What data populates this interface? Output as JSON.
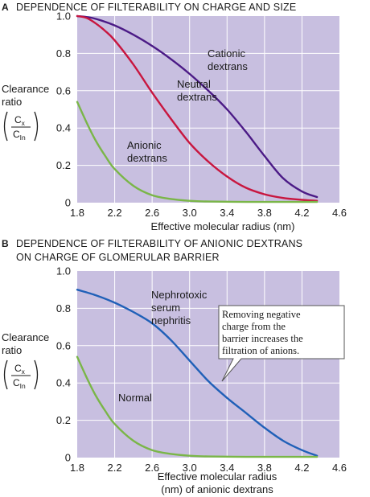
{
  "chart_data": [
    {
      "type": "line",
      "panel_letter": "A",
      "title": "DEPENDENCE OF FILTERABILITY ON CHARGE AND SIZE",
      "xlabel": "Effective molecular radius (nm)",
      "ylabel": "Clearance ratio",
      "ylabel_lines": [
        "Clearance",
        "ratio"
      ],
      "ylabel_fraction": {
        "numerator": "C",
        "numerator_sub": "x",
        "denominator": "C",
        "denominator_sub": "In"
      },
      "xlim": [
        1.8,
        4.6
      ],
      "ylim": [
        0,
        1.0
      ],
      "x_ticks": [
        1.8,
        2.2,
        2.6,
        3.0,
        3.4,
        3.8,
        4.2,
        4.6
      ],
      "x_tick_labels": [
        "1.8",
        "2.2",
        "2.6",
        "3.0",
        "3.4",
        "3.8",
        "4.2",
        "4.6"
      ],
      "y_ticks": [
        0,
        0.2,
        0.4,
        0.6,
        0.8,
        1.0
      ],
      "y_tick_labels": [
        "0",
        "0.2",
        "0.4",
        "0.6",
        "0.8",
        "1.0"
      ],
      "grid": true,
      "series": [
        {
          "name": "Cationic dextrans",
          "label_lines": [
            "Cationic",
            "dextrans"
          ],
          "color": "#4b1a86",
          "x": [
            1.8,
            1.9,
            2.0,
            2.2,
            2.4,
            2.6,
            2.8,
            3.0,
            3.2,
            3.4,
            3.6,
            3.8,
            4.0,
            4.2,
            4.36
          ],
          "y": [
            1.0,
            0.995,
            0.985,
            0.95,
            0.9,
            0.84,
            0.77,
            0.69,
            0.6,
            0.5,
            0.38,
            0.25,
            0.13,
            0.06,
            0.03
          ]
        },
        {
          "name": "Neutral dextrans",
          "label_lines": [
            "Neutral",
            "dextrans"
          ],
          "color": "#c8163f",
          "x": [
            1.8,
            1.9,
            2.0,
            2.1,
            2.2,
            2.4,
            2.6,
            2.8,
            3.0,
            3.2,
            3.4,
            3.6,
            3.8,
            4.0,
            4.2,
            4.36
          ],
          "y": [
            1.0,
            0.99,
            0.96,
            0.92,
            0.87,
            0.74,
            0.59,
            0.45,
            0.32,
            0.22,
            0.14,
            0.08,
            0.045,
            0.025,
            0.015,
            0.01
          ]
        },
        {
          "name": "Anionic dextrans",
          "label_lines": [
            "Anionic",
            "dextrans"
          ],
          "color": "#7ab648",
          "x": [
            1.8,
            1.9,
            2.0,
            2.1,
            2.2,
            2.4,
            2.6,
            2.8,
            3.0,
            3.2,
            3.6,
            4.0,
            4.36
          ],
          "y": [
            0.54,
            0.43,
            0.33,
            0.25,
            0.18,
            0.09,
            0.04,
            0.02,
            0.01,
            0.006,
            0.004,
            0.004,
            0.004
          ]
        }
      ]
    },
    {
      "type": "line",
      "panel_letter": "B",
      "title_lines": [
        "DEPENDENCE OF FILTERABILITY OF ANIONIC DEXTRANS",
        "ON CHARGE OF GLOMERULAR BARRIER"
      ],
      "xlabel_lines": [
        "Effective molecular radius",
        "(nm) of anionic dextrans"
      ],
      "ylabel": "Clearance ratio",
      "ylabel_lines": [
        "Clearance",
        "ratio"
      ],
      "ylabel_fraction": {
        "numerator": "C",
        "numerator_sub": "x",
        "denominator": "C",
        "denominator_sub": "In"
      },
      "xlim": [
        1.8,
        4.6
      ],
      "ylim": [
        0,
        1.0
      ],
      "x_ticks": [
        1.8,
        2.2,
        2.6,
        3.0,
        3.4,
        3.8,
        4.2,
        4.6
      ],
      "x_tick_labels": [
        "1.8",
        "2.2",
        "2.6",
        "3.0",
        "3.4",
        "3.8",
        "4.2",
        "4.6"
      ],
      "y_ticks": [
        0,
        0.2,
        0.4,
        0.6,
        0.8,
        1.0
      ],
      "y_tick_labels": [
        "0",
        "0.2",
        "0.4",
        "0.6",
        "0.8",
        "1.0"
      ],
      "grid": true,
      "annotation": {
        "lines": [
          "Removing negative",
          "charge from the",
          "barrier increases the",
          "filtration  of anions."
        ]
      },
      "series": [
        {
          "name": "Nephrotoxic serum nephritis",
          "label_lines": [
            "Nephrotoxic",
            "serum",
            "nephritis"
          ],
          "color": "#2060b8",
          "x": [
            1.8,
            2.0,
            2.2,
            2.4,
            2.6,
            2.8,
            3.0,
            3.2,
            3.4,
            3.6,
            3.8,
            4.0,
            4.2,
            4.36
          ],
          "y": [
            0.9,
            0.87,
            0.83,
            0.78,
            0.72,
            0.63,
            0.52,
            0.41,
            0.32,
            0.24,
            0.16,
            0.09,
            0.04,
            0.01
          ]
        },
        {
          "name": "Normal",
          "label_lines": [
            "Normal"
          ],
          "color": "#7ab648",
          "x": [
            1.8,
            1.9,
            2.0,
            2.1,
            2.2,
            2.4,
            2.6,
            2.8,
            3.0,
            3.2,
            3.6,
            4.0,
            4.36
          ],
          "y": [
            0.54,
            0.43,
            0.33,
            0.25,
            0.18,
            0.09,
            0.04,
            0.02,
            0.01,
            0.006,
            0.004,
            0.004,
            0.004
          ]
        }
      ]
    }
  ]
}
